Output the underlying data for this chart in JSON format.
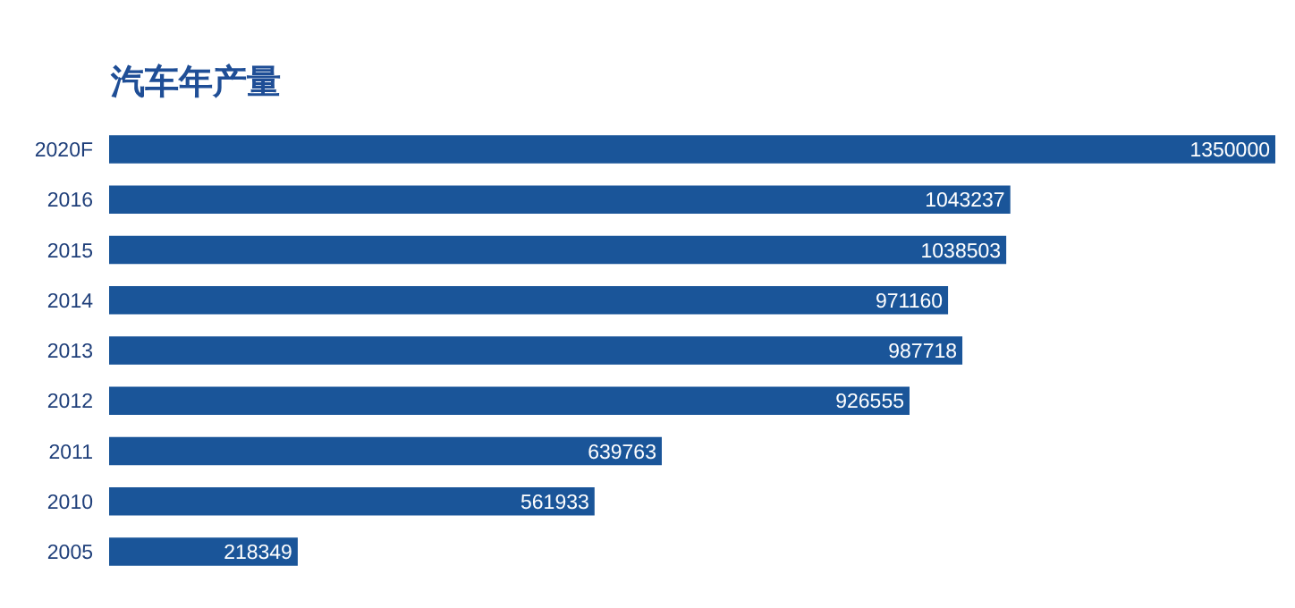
{
  "chart_data": {
    "type": "bar",
    "orientation": "horizontal",
    "title": "汽车年产量",
    "categories": [
      "2020F",
      "2016",
      "2015",
      "2014",
      "2013",
      "2012",
      "2011",
      "2010",
      "2005"
    ],
    "values": [
      1350000,
      1043237,
      1038503,
      971160,
      987718,
      926555,
      639763,
      561933,
      218349
    ],
    "color": "#1a5599",
    "data_labels": true
  }
}
